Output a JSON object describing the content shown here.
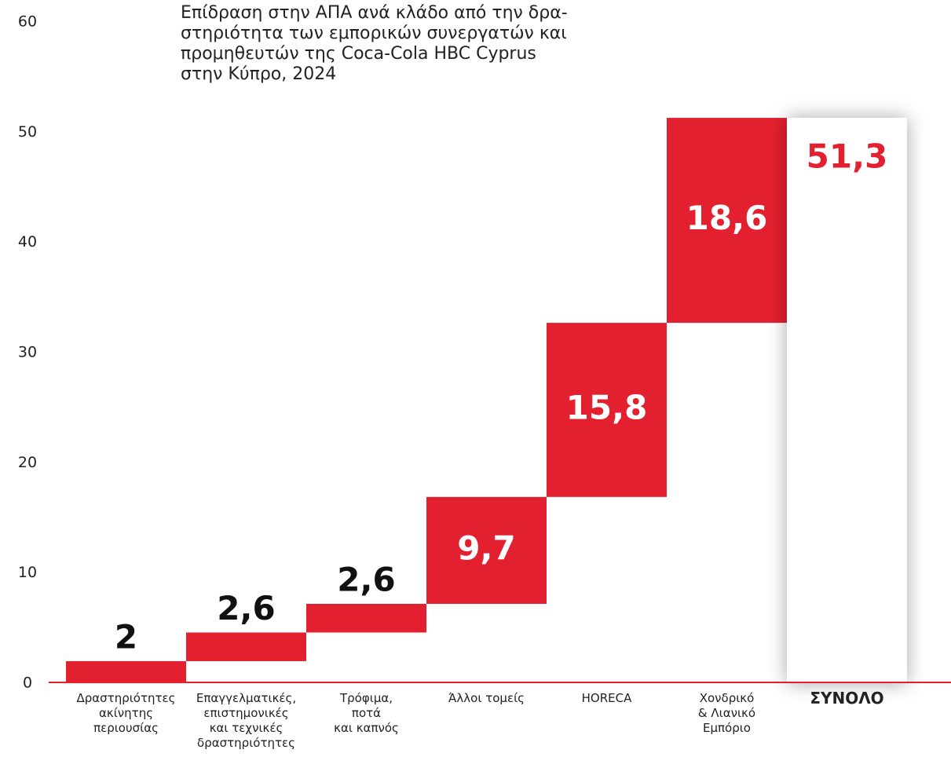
{
  "chart_data": {
    "type": "waterfall",
    "title": "Επίδραση στην ΑΠΑ ανά κλάδο από την δρα-\nστηριότητα των εμπορικών συνεργατών και\nπρομηθευτών της Coca-Cola HBC Cyprus\nστην Κύπρο, 2024",
    "categories": [
      "Δραστηριότητες\nακίνητης\nπεριουσίας",
      "Επαγγελματικές,\nεπιστημονικές\nκαι τεχνικές\nδραστηριότητες",
      "Τρόφιμα,\nποτά\nκαι καπνός",
      "Άλλοι τομείς",
      "HORECA",
      "Χονδρικό\n& Λιανικό\nΕμπόριο",
      "ΣΥΝΟΛΟ"
    ],
    "values": [
      2,
      2.6,
      2.6,
      9.7,
      15.8,
      18.6,
      51.3
    ],
    "value_labels": [
      "2",
      "2,6",
      "2,6",
      "9,7",
      "15,8",
      "18,6",
      "51,3"
    ],
    "total_last": true,
    "color": "#e3202f",
    "total_color": "#ffffff",
    "ylim": [
      0,
      60
    ],
    "yticks": [
      0,
      10,
      20,
      30,
      40,
      50,
      60
    ],
    "grid": false
  }
}
